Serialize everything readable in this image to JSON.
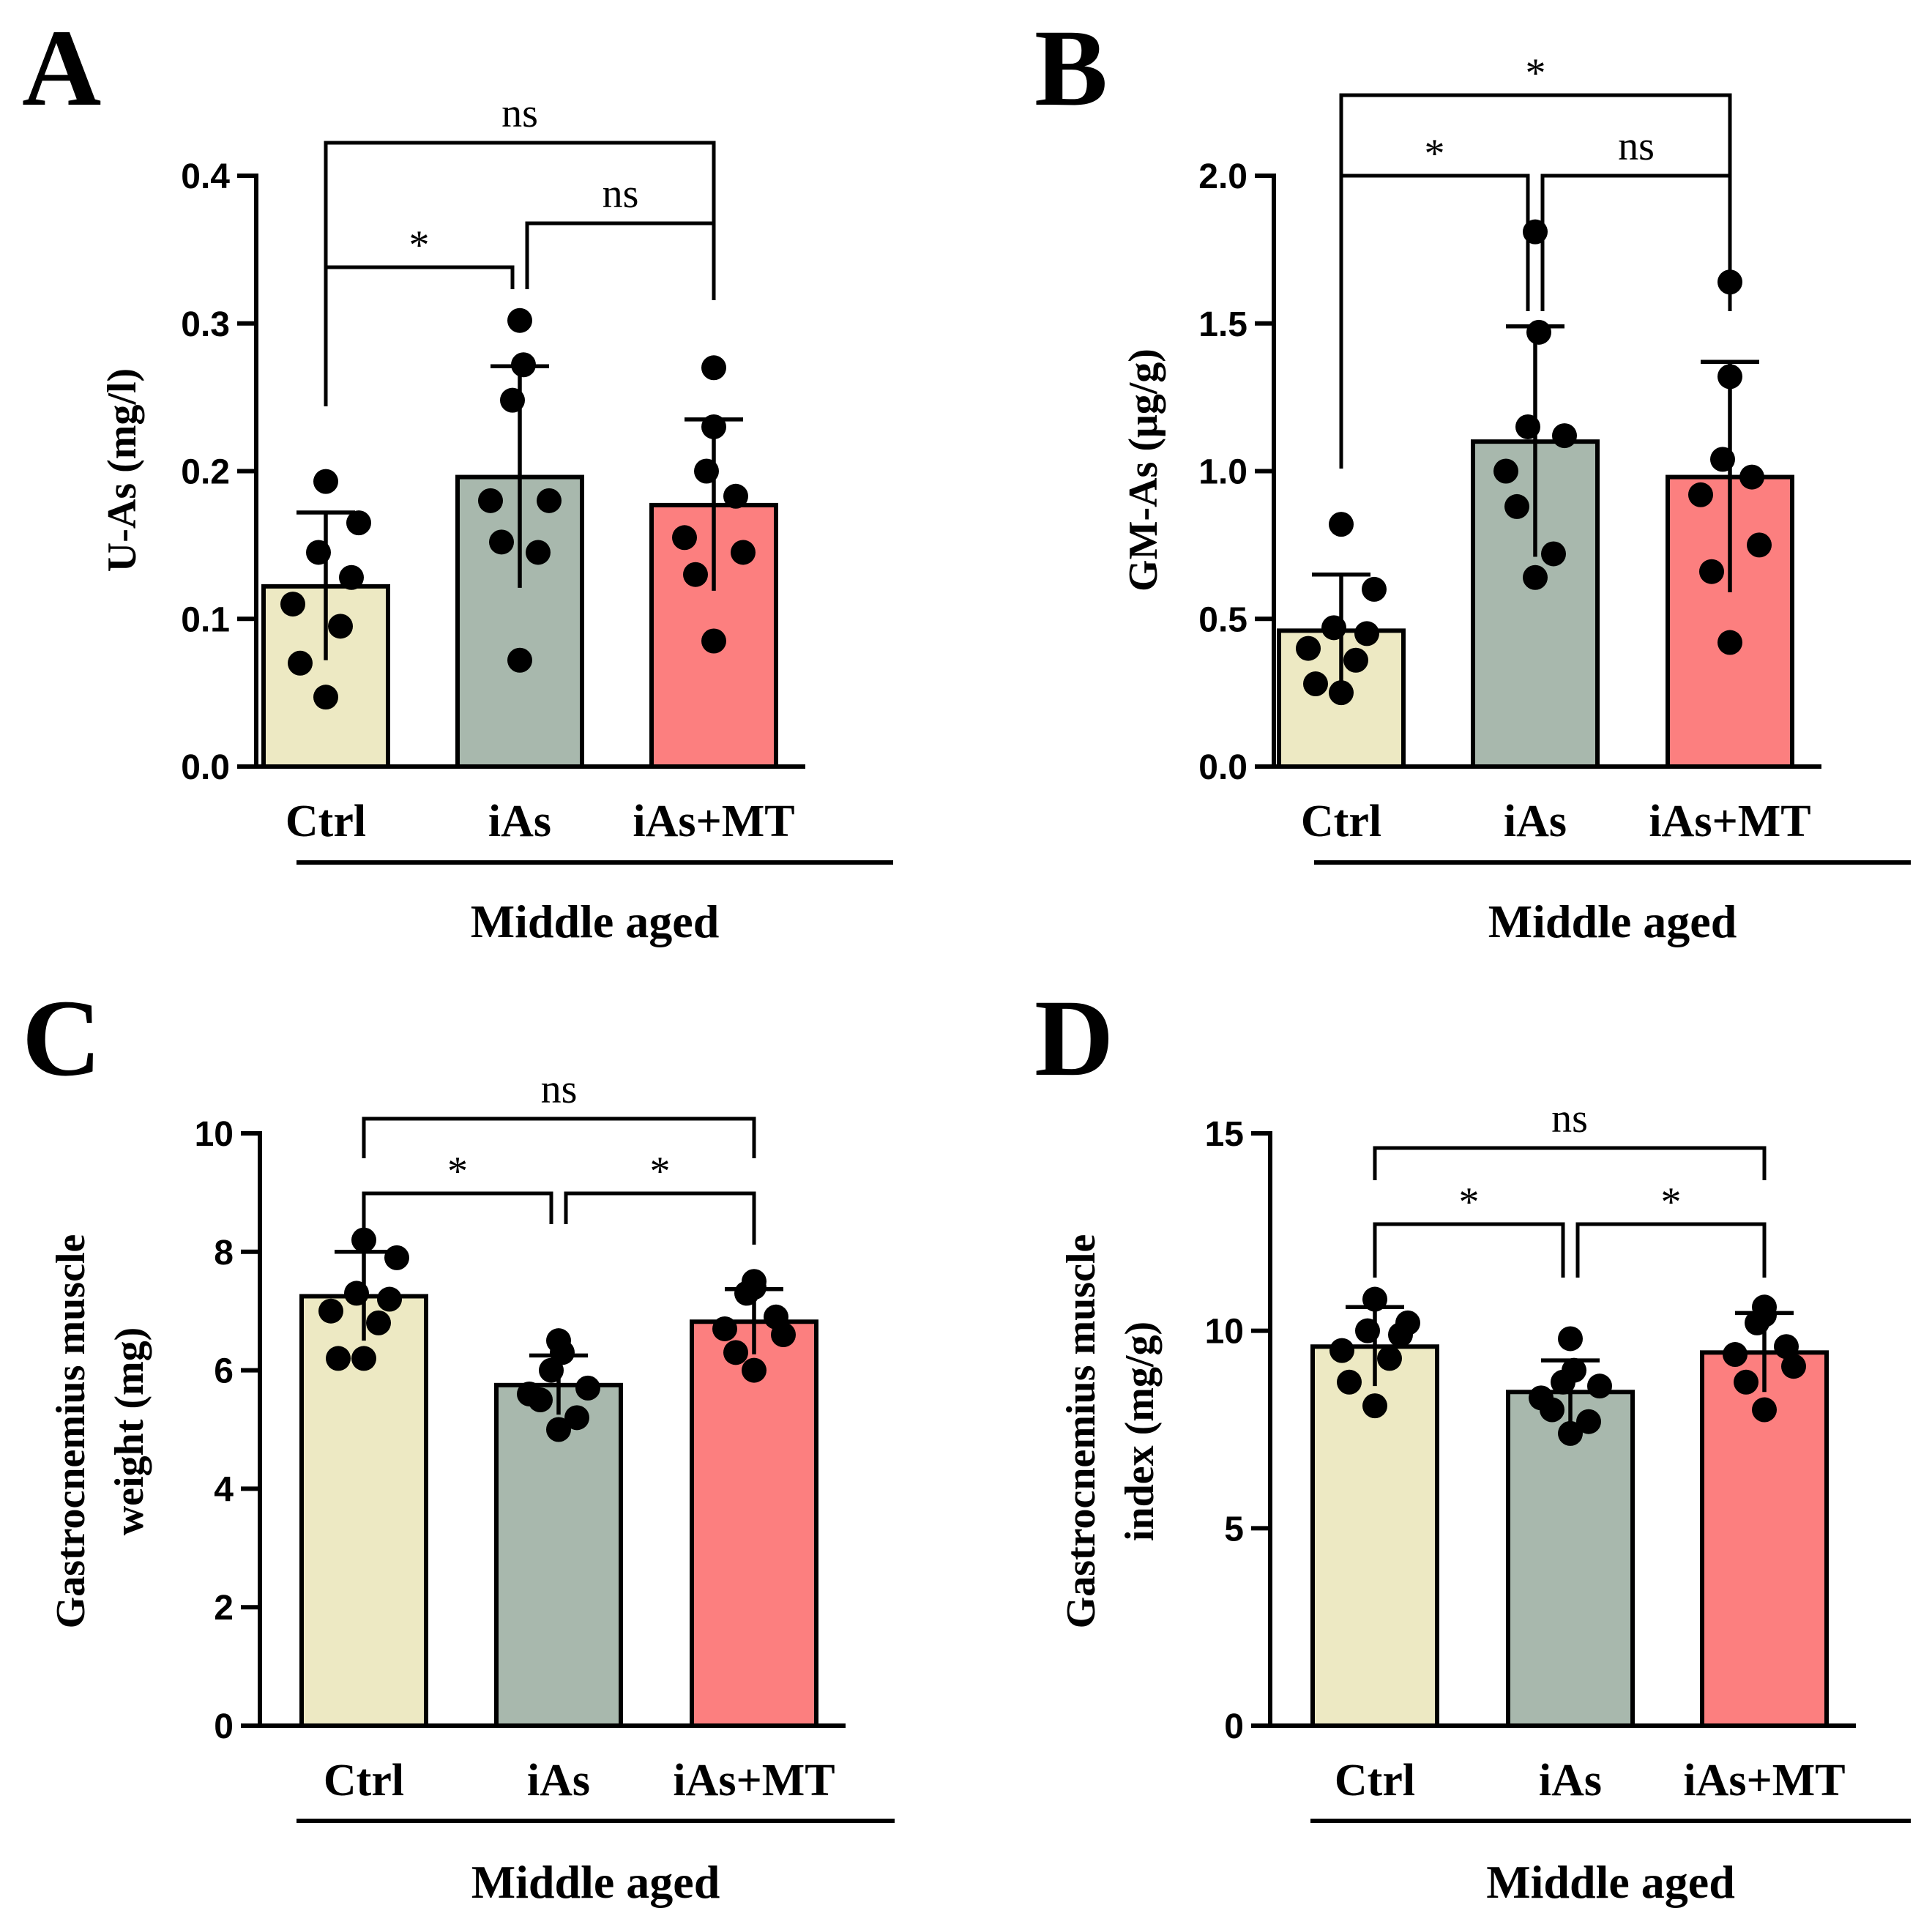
{
  "colors": {
    "ctrl": "#ede9c3",
    "ias": "#a8b8ad",
    "iasmt": "#fc7f7f",
    "ink": "#000000"
  },
  "chart_data": [
    {
      "panel": "A",
      "type": "bar",
      "ylabel": "U-As (mg/l)",
      "ylim": [
        0,
        0.4
      ],
      "yticks": [
        0.0,
        0.1,
        0.2,
        0.3,
        0.4
      ],
      "tick_labels": [
        "0.0",
        "0.1",
        "0.2",
        "0.3",
        "0.4"
      ],
      "categories": [
        "Ctrl",
        "iAs",
        "iAs+MT"
      ],
      "group_label": "Middle aged",
      "means": [
        0.122,
        0.196,
        0.177
      ],
      "sd": [
        0.05,
        0.075,
        0.058
      ],
      "points": [
        [
          0.193,
          0.165,
          0.145,
          0.128,
          0.11,
          0.095,
          0.07,
          0.047
        ],
        [
          0.302,
          0.272,
          0.248,
          0.18,
          0.18,
          0.152,
          0.145,
          0.072
        ],
        [
          0.27,
          0.23,
          0.2,
          0.183,
          0.155,
          0.145,
          0.13,
          0.085
        ]
      ],
      "comparisons": [
        {
          "label": "*",
          "from": 0,
          "to": 1
        },
        {
          "label": "ns",
          "from": 1,
          "to": 2
        },
        {
          "label": "ns",
          "from": 0,
          "to": 2
        }
      ]
    },
    {
      "panel": "B",
      "type": "bar",
      "ylabel": "GM-As (μg/g)",
      "ylim": [
        0,
        2.0
      ],
      "yticks": [
        0.0,
        0.5,
        1.0,
        1.5,
        2.0
      ],
      "tick_labels": [
        "0.0",
        "0.5",
        "1.0",
        "1.5",
        "2.0"
      ],
      "categories": [
        "Ctrl",
        "iAs",
        "iAs+MT"
      ],
      "group_label": "Middle aged",
      "means": [
        0.46,
        1.1,
        0.98
      ],
      "sd": [
        0.19,
        0.39,
        0.39
      ],
      "points": [
        [
          0.82,
          0.6,
          0.47,
          0.45,
          0.4,
          0.36,
          0.28,
          0.25
        ],
        [
          1.81,
          1.47,
          1.15,
          1.12,
          1.0,
          0.88,
          0.72,
          0.64
        ],
        [
          1.64,
          1.32,
          1.04,
          0.98,
          0.92,
          0.75,
          0.66,
          0.42
        ]
      ],
      "comparisons": [
        {
          "label": "*",
          "from": 0,
          "to": 1
        },
        {
          "label": "ns",
          "from": 1,
          "to": 2
        },
        {
          "label": "*",
          "from": 0,
          "to": 2
        }
      ]
    },
    {
      "panel": "C",
      "type": "bar",
      "ylabel": [
        "Gastrocnemius muscle",
        "weight (mg)"
      ],
      "ylim": [
        0,
        10
      ],
      "yticks": [
        0,
        2,
        4,
        6,
        8,
        10
      ],
      "tick_labels": [
        "0",
        "2",
        "4",
        "6",
        "8",
        "10"
      ],
      "categories": [
        "Ctrl",
        "iAs",
        "iAs+MT"
      ],
      "group_label": "Middle aged",
      "means": [
        7.25,
        5.75,
        6.82
      ],
      "sd": [
        0.75,
        0.5,
        0.55
      ],
      "points": [
        [
          8.2,
          7.9,
          7.3,
          7.2,
          7.0,
          6.8,
          6.2,
          6.2
        ],
        [
          6.5,
          6.3,
          6.0,
          5.7,
          5.6,
          5.5,
          5.2,
          5.0
        ],
        [
          7.5,
          7.4,
          7.3,
          6.9,
          6.7,
          6.6,
          6.3,
          6.0
        ]
      ],
      "comparisons": [
        {
          "label": "*",
          "from": 0,
          "to": 1
        },
        {
          "label": "*",
          "from": 1,
          "to": 2
        },
        {
          "label": "ns",
          "from": 0,
          "to": 2
        }
      ]
    },
    {
      "panel": "D",
      "type": "bar",
      "ylabel": [
        "Gastrocnemius muscle",
        "index (mg/g)"
      ],
      "ylim": [
        0,
        15
      ],
      "yticks": [
        0,
        5,
        10,
        15
      ],
      "tick_labels": [
        "0",
        "5",
        "10",
        "15"
      ],
      "categories": [
        "Ctrl",
        "iAs",
        "iAs+MT"
      ],
      "group_label": "Middle aged",
      "means": [
        9.6,
        8.45,
        9.45
      ],
      "sd": [
        1.0,
        0.8,
        1.0
      ],
      "points": [
        [
          10.8,
          10.2,
          10.0,
          9.9,
          9.5,
          9.3,
          8.7,
          8.1
        ],
        [
          9.8,
          9.0,
          8.7,
          8.6,
          8.3,
          8.0,
          7.7,
          7.4
        ],
        [
          10.6,
          10.4,
          10.2,
          9.6,
          9.4,
          9.1,
          8.7,
          8.0
        ]
      ],
      "comparisons": [
        {
          "label": "*",
          "from": 0,
          "to": 1
        },
        {
          "label": "*",
          "from": 1,
          "to": 2
        },
        {
          "label": "ns",
          "from": 0,
          "to": 2
        }
      ]
    }
  ]
}
